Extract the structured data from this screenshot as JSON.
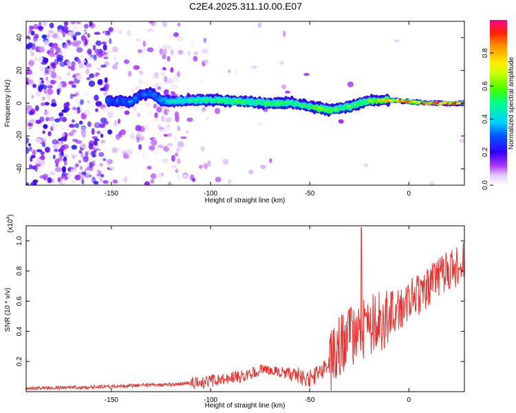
{
  "title": "C2E4.2025.311.10.00.E07",
  "colors": {
    "snr_line": "#e8302c",
    "colormap": [
      "#ffffff",
      "#cc00ff",
      "#5a00ff",
      "#0000ff",
      "#00c8ff",
      "#00ff66",
      "#66ff00",
      "#ffff00",
      "#ff8800",
      "#ff0000",
      "#ff0088"
    ]
  },
  "chart_data": [
    {
      "type": "heatmap",
      "xlabel": "Height of straight line (km)",
      "ylabel": "Frequency (Hz)",
      "xlim": [
        -193,
        28
      ],
      "ylim": [
        -50,
        50
      ],
      "xticks": [
        -150,
        -100,
        -50,
        0
      ],
      "yticks": [
        -40,
        -20,
        0,
        20,
        40
      ],
      "xtick_labels": [
        "-150",
        "-100",
        "-50",
        "0"
      ],
      "ytick_labels": [
        "-40",
        "-20",
        "0",
        "20",
        "40"
      ],
      "ridge": {
        "x": [
          -150,
          -140,
          -135,
          -130,
          -125,
          -120,
          -110,
          -100,
          -90,
          -80,
          -70,
          -60,
          -50,
          -45,
          -40,
          -30,
          -25,
          -20,
          -10,
          0,
          10,
          28
        ],
        "frequency": [
          1.5,
          1,
          5,
          6,
          2,
          1,
          2,
          2,
          1.5,
          1,
          0,
          0.5,
          -2,
          -3,
          -4,
          -2,
          0,
          1.5,
          2,
          1,
          0,
          0
        ],
        "amplitude": [
          0.3,
          0.35,
          0.3,
          0.35,
          0.4,
          0.45,
          0.5,
          0.55,
          0.6,
          0.55,
          0.6,
          0.55,
          0.6,
          0.7,
          0.65,
          0.6,
          0.65,
          0.7,
          0.75,
          0.85,
          0.95,
          0.95
        ]
      },
      "colorbar": {
        "label": "Normalized spectral amplitude",
        "range": [
          0,
          1
        ],
        "ticks": [
          "0.0",
          "0.2",
          "0.4",
          "0.6",
          "0.8"
        ]
      }
    },
    {
      "type": "line",
      "xlabel": "Height of straight line (km)",
      "ylabel": "SNR (10 * v/v)",
      "scale_note": "(x10",
      "scale_exp": "4",
      "scale_close": ")",
      "xlim": [
        -193,
        28
      ],
      "ylim": [
        0,
        1.1
      ],
      "xticks": [
        -150,
        -100,
        -50,
        0
      ],
      "yticks": [
        0.2,
        0.4,
        0.6,
        0.8,
        1.0
      ],
      "xtick_labels": [
        "-150",
        "-100",
        "-50",
        "0"
      ],
      "ytick_labels": [
        "0.2",
        "0.4",
        "0.6",
        "0.8",
        "1.0"
      ],
      "series": [
        {
          "x": [
            -193,
            -180,
            -160,
            -150,
            -140,
            -120,
            -105,
            -95,
            -85,
            -78,
            -72,
            -66,
            -60,
            -55,
            -50,
            -45,
            -40,
            -35,
            -30,
            -25,
            -22,
            -20,
            -15,
            -10,
            -5,
            0,
            5,
            10,
            15,
            20,
            25,
            28
          ],
          "values": [
            0.02,
            0.025,
            0.03,
            0.035,
            0.04,
            0.05,
            0.06,
            0.08,
            0.1,
            0.13,
            0.15,
            0.13,
            0.12,
            0.1,
            0.09,
            0.12,
            0.18,
            0.28,
            0.35,
            0.42,
            0.45,
            0.46,
            0.48,
            0.52,
            0.55,
            0.6,
            0.65,
            0.7,
            0.75,
            0.8,
            0.84,
            0.86
          ],
          "peak": {
            "x": -24,
            "value": 1.09
          }
        }
      ]
    }
  ]
}
